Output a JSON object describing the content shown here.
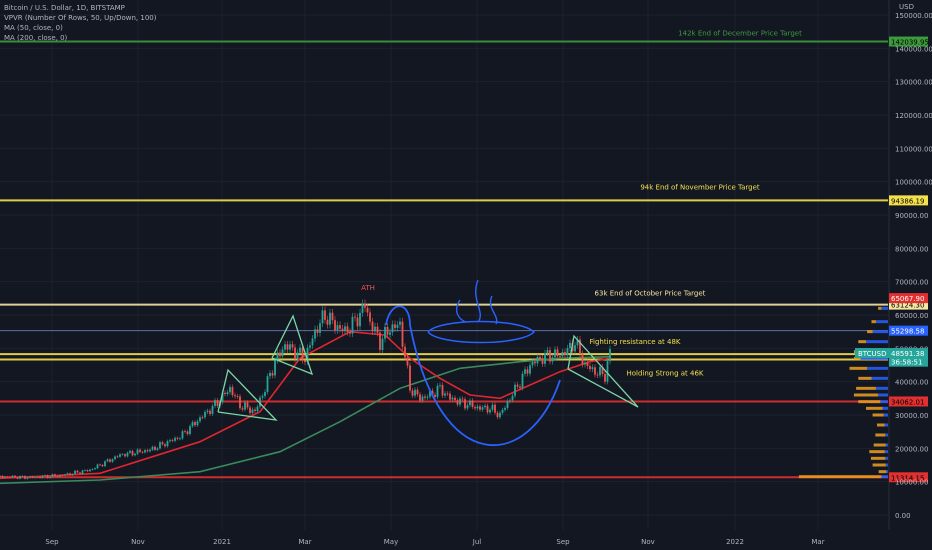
{
  "header": {
    "symbol_line": "Bitcoin / U.S. Dollar, 1D, BITSTAMP",
    "indicator_vpvr": "VPVR (Number Of Rows, 50, Up/Down, 100)",
    "indicator_ma50": "MA (50, close, 0)",
    "indicator_ma200": "MA (200, close, 0)",
    "currency": "USD"
  },
  "colors": {
    "background": "#131722",
    "grid": "#1e222d",
    "axis_text": "#b2b5be",
    "green_level": "#3d9a3d",
    "yellow_level": "#f4e04d",
    "light_yellow_level": "#f5e6a0",
    "red_level": "#e23030",
    "ma50": "#e0262e",
    "ma200": "#3a8a5c",
    "pattern": "#7bd6a6",
    "annotation": "#2962ff",
    "vol_up": "#2962ff",
    "vol_down": "#f0a020"
  },
  "chart_data": {
    "type": "candlestick",
    "x_ticks": [
      "Sep",
      "Nov",
      "2021",
      "Mar",
      "May",
      "Jul",
      "Sep",
      "Nov",
      "2022",
      "Mar"
    ],
    "y_ticks": [
      "0.00",
      "10000.00",
      "20000.00",
      "30000.00",
      "40000.00",
      "50000.00",
      "60000.00",
      "70000.00",
      "80000.00",
      "90000.00",
      "100000.00",
      "110000.00",
      "120000.00",
      "130000.00",
      "140000.00",
      "150000.00"
    ],
    "y_range": [
      0,
      150000
    ],
    "price_path": [
      [
        0,
        11500
      ],
      [
        30,
        11300
      ],
      [
        60,
        11800
      ],
      [
        90,
        13500
      ],
      [
        120,
        18000
      ],
      [
        150,
        19500
      ],
      [
        180,
        23500
      ],
      [
        200,
        29000
      ],
      [
        215,
        33000
      ],
      [
        230,
        38000
      ],
      [
        240,
        33000
      ],
      [
        255,
        31000
      ],
      [
        265,
        38000
      ],
      [
        275,
        46000
      ],
      [
        285,
        51000
      ],
      [
        295,
        49000
      ],
      [
        305,
        47000
      ],
      [
        315,
        55000
      ],
      [
        325,
        60000
      ],
      [
        335,
        57000
      ],
      [
        345,
        55000
      ],
      [
        355,
        58000
      ],
      [
        365,
        63000
      ],
      [
        370,
        58000
      ],
      [
        380,
        52000
      ],
      [
        390,
        56000
      ],
      [
        400,
        57000
      ],
      [
        410,
        38000
      ],
      [
        420,
        35000
      ],
      [
        430,
        36000
      ],
      [
        440,
        38000
      ],
      [
        450,
        35000
      ],
      [
        460,
        34000
      ],
      [
        470,
        33000
      ],
      [
        480,
        32000
      ],
      [
        490,
        32000
      ],
      [
        500,
        30000
      ],
      [
        510,
        35000
      ],
      [
        520,
        40000
      ],
      [
        530,
        45000
      ],
      [
        540,
        47000
      ],
      [
        550,
        48000
      ],
      [
        560,
        48000
      ],
      [
        570,
        50000
      ],
      [
        575,
        52000
      ],
      [
        585,
        45000
      ],
      [
        595,
        43000
      ],
      [
        605,
        42000
      ],
      [
        610,
        48500
      ]
    ],
    "ma50_path": [
      [
        0,
        11000
      ],
      [
        100,
        12500
      ],
      [
        200,
        22000
      ],
      [
        260,
        31000
      ],
      [
        300,
        47000
      ],
      [
        350,
        55000
      ],
      [
        385,
        54000
      ],
      [
        410,
        47000
      ],
      [
        440,
        41000
      ],
      [
        470,
        36000
      ],
      [
        500,
        35000
      ],
      [
        530,
        39000
      ],
      [
        560,
        43000
      ],
      [
        590,
        46000
      ],
      [
        610,
        47000
      ]
    ],
    "ma200_path": [
      [
        0,
        9500
      ],
      [
        100,
        10500
      ],
      [
        200,
        13000
      ],
      [
        280,
        19000
      ],
      [
        340,
        28000
      ],
      [
        400,
        38000
      ],
      [
        460,
        44000
      ],
      [
        520,
        46000
      ],
      [
        560,
        47000
      ],
      [
        610,
        47500
      ]
    ],
    "levels": [
      {
        "value": 142039.95,
        "label": "142039.95",
        "color": "green_level",
        "annotation": "142k End of December Price Target"
      },
      {
        "value": 94386.19,
        "label": "94386.19",
        "color": "yellow_level",
        "annotation": "94k End of November Price Target"
      },
      {
        "value": 63124.3,
        "label": "63124.30",
        "color": "light_yellow_level",
        "annotation": "63k End of October Price Target"
      },
      {
        "value": 48279.66,
        "label": "48279.66",
        "color": "yellow_level",
        "annotation": "Fighting resistance at 48K"
      },
      {
        "value": 46655.93,
        "label": "46655.93",
        "color": "yellow_level",
        "annotation": "Holding Strong at 46K"
      },
      {
        "value": 34062.01,
        "label": "34062.01",
        "color": "red_level",
        "annotation": ""
      },
      {
        "value": 11314.15,
        "label": "11314.15",
        "color": "red_level",
        "annotation": ""
      }
    ],
    "price_tags": [
      {
        "value": 65067.9,
        "label": "65067.90",
        "bg": "#e23030",
        "fg": "#ffffff"
      },
      {
        "value": 55298.58,
        "label": "55298.58",
        "bg": "#2962ff",
        "fg": "#ffffff"
      },
      {
        "value": 48591.38,
        "label": "48591.38",
        "bg": "#26a69a",
        "fg": "#ffffff",
        "symbol": "BTCUSD"
      },
      {
        "value": 46000,
        "label": "36:58:51",
        "bg": "#26a69a",
        "fg": "#ffffff"
      }
    ],
    "ath_label": "ATH",
    "volume_profile": [
      {
        "value": 62000,
        "up": 12,
        "down": 6
      },
      {
        "value": 58000,
        "up": 22,
        "down": 8
      },
      {
        "value": 55000,
        "up": 28,
        "down": 10
      },
      {
        "value": 52000,
        "up": 40,
        "down": 14
      },
      {
        "value": 49000,
        "up": 48,
        "down": 14
      },
      {
        "value": 47000,
        "up": 50,
        "down": 12
      },
      {
        "value": 44000,
        "up": 38,
        "down": 32
      },
      {
        "value": 41000,
        "up": 30,
        "down": 24
      },
      {
        "value": 38000,
        "up": 22,
        "down": 36
      },
      {
        "value": 36000,
        "up": 18,
        "down": 44
      },
      {
        "value": 34000,
        "up": 14,
        "down": 40
      },
      {
        "value": 32000,
        "up": 10,
        "down": 30
      },
      {
        "value": 30000,
        "up": 8,
        "down": 20
      },
      {
        "value": 27000,
        "up": 6,
        "down": 14
      },
      {
        "value": 24000,
        "up": 5,
        "down": 18
      },
      {
        "value": 21000,
        "up": 4,
        "down": 22
      },
      {
        "value": 19000,
        "up": 6,
        "down": 28
      },
      {
        "value": 17000,
        "up": 5,
        "down": 26
      },
      {
        "value": 15000,
        "up": 4,
        "down": 24
      },
      {
        "value": 13000,
        "up": 3,
        "down": 14
      },
      {
        "value": 11500,
        "up": 12,
        "down": 150
      }
    ]
  }
}
